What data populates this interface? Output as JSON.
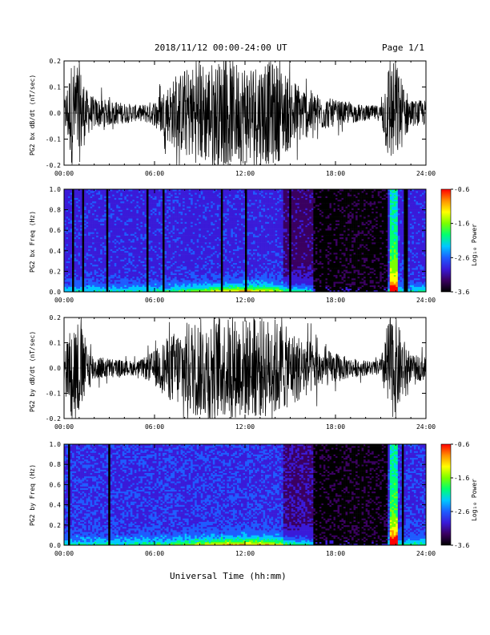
{
  "header": {
    "title": "2018/11/12   00:00-24:00 UT",
    "page": "Page 1/1"
  },
  "footer": {
    "xlabel": "Universal Time (hh:mm)"
  },
  "colors": {
    "trace": "#000000",
    "colormap": [
      "#000000",
      "#3a0060",
      "#3a1ad8",
      "#1e5cff",
      "#00c8ff",
      "#00ff70",
      "#7aff00",
      "#ffff00",
      "#ff9000",
      "#ff0000"
    ]
  },
  "chart_data": [
    {
      "type": "line",
      "ylabel": "PG2 bx dB/dt (nT/sec)",
      "xlim": [
        "00:00",
        "24:00"
      ],
      "ylim": [
        -0.2,
        0.2
      ],
      "xticks": [
        "00:00",
        "06:00",
        "12:00",
        "18:00",
        "24:00"
      ],
      "yticks": [
        "-0.2",
        "-0.1",
        "0.0",
        "0.1",
        "0.2"
      ],
      "envelope_hours": [
        0,
        0.5,
        1,
        1.5,
        2,
        3,
        4,
        5,
        6,
        7,
        8,
        9,
        10,
        11,
        12,
        13,
        14,
        15,
        16,
        17,
        18,
        19,
        20,
        21,
        21.5,
        22,
        22.5,
        23,
        24
      ],
      "envelope_amp": [
        0.05,
        0.2,
        0.2,
        0.09,
        0.06,
        0.05,
        0.04,
        0.03,
        0.05,
        0.12,
        0.17,
        0.2,
        0.2,
        0.2,
        0.2,
        0.2,
        0.2,
        0.14,
        0.1,
        0.07,
        0.05,
        0.04,
        0.03,
        0.03,
        0.2,
        0.2,
        0.12,
        0.05,
        0.05
      ]
    },
    {
      "type": "heatmap",
      "ylabel": "PG2 bx Freq (Hz)",
      "xlim": [
        "00:00",
        "24:00"
      ],
      "ylim": [
        0.0,
        1.0
      ],
      "xticks": [
        "00:00",
        "06:00",
        "12:00",
        "18:00",
        "24:00"
      ],
      "yticks": [
        "0.0",
        "0.2",
        "0.4",
        "0.6",
        "0.8",
        "1.0"
      ],
      "colorbar": {
        "label": "Log₁₀ Power",
        "range": [
          -3.6,
          -0.6
        ],
        "ticks": [
          "-0.6",
          "-1.6",
          "-2.6",
          "-3.6"
        ]
      }
    },
    {
      "type": "line",
      "ylabel": "PG2 by dB/dt (nT/sec)",
      "xlim": [
        "00:00",
        "24:00"
      ],
      "ylim": [
        -0.2,
        0.2
      ],
      "xticks": [
        "00:00",
        "06:00",
        "12:00",
        "18:00",
        "24:00"
      ],
      "yticks": [
        "-0.2",
        "-0.1",
        "0.0",
        "0.1",
        "0.2"
      ],
      "envelope_hours": [
        0,
        0.5,
        1,
        1.5,
        2,
        3,
        4,
        5,
        6,
        7,
        8,
        9,
        10,
        11,
        12,
        13,
        14,
        15,
        16,
        17,
        18,
        19,
        20,
        21,
        21.5,
        22,
        22.5,
        23,
        24
      ],
      "envelope_amp": [
        0.05,
        0.2,
        0.2,
        0.1,
        0.05,
        0.04,
        0.03,
        0.03,
        0.07,
        0.13,
        0.18,
        0.2,
        0.2,
        0.2,
        0.2,
        0.2,
        0.2,
        0.15,
        0.12,
        0.08,
        0.06,
        0.04,
        0.03,
        0.03,
        0.2,
        0.2,
        0.12,
        0.05,
        0.05
      ]
    },
    {
      "type": "heatmap",
      "ylabel": "PG2 by Freq (Hz)",
      "xlim": [
        "00:00",
        "24:00"
      ],
      "ylim": [
        0.0,
        1.0
      ],
      "xticks": [
        "00:00",
        "06:00",
        "12:00",
        "18:00",
        "24:00"
      ],
      "yticks": [
        "0.0",
        "0.2",
        "0.4",
        "0.6",
        "0.8",
        "1.0"
      ],
      "colorbar": {
        "label": "Log₁₀ Power",
        "range": [
          -3.6,
          -0.6
        ],
        "ticks": [
          "-0.6",
          "-1.6",
          "-2.6",
          "-3.6"
        ]
      }
    }
  ]
}
